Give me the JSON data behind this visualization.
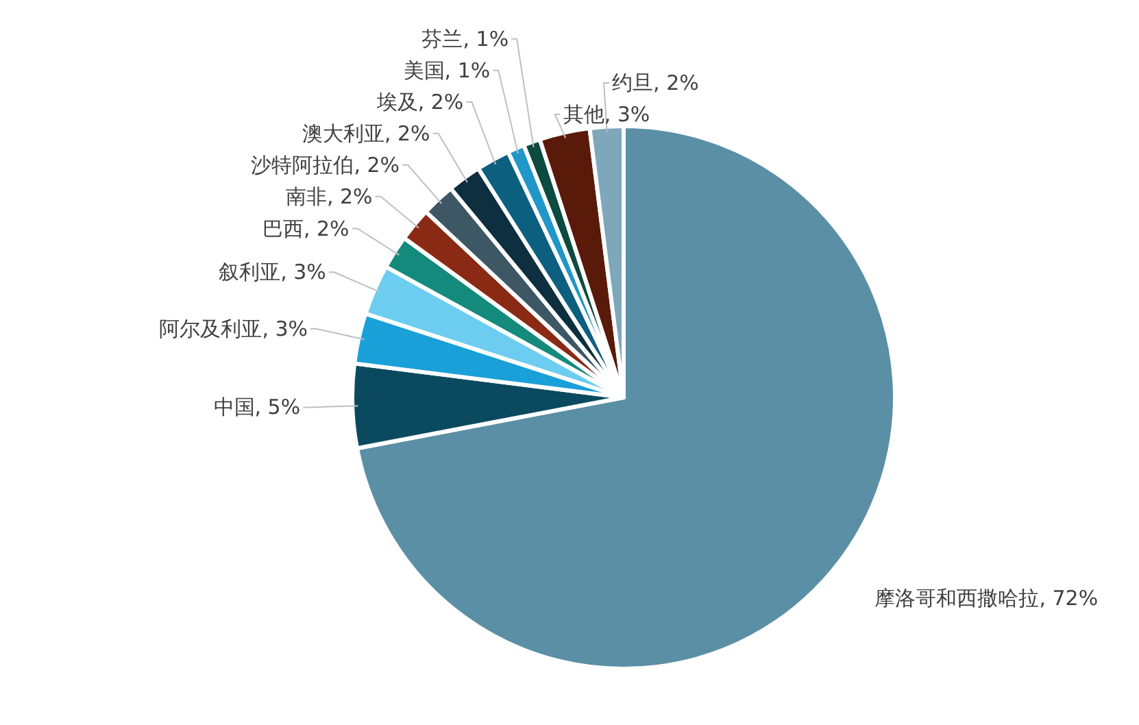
{
  "chart_data": {
    "type": "pie",
    "categories": [
      "摩洛哥和西撒哈拉",
      "中国",
      "阿尔及利亚",
      "叙利亚",
      "巴西",
      "南非",
      "沙特阿拉伯",
      "澳大利亚",
      "埃及",
      "美国",
      "芬兰",
      "其他",
      "约旦"
    ],
    "values": [
      72,
      5,
      3,
      3,
      2,
      2,
      2,
      2,
      2,
      1,
      1,
      3,
      2
    ],
    "value_labels": [
      "72%",
      "5%",
      "3%",
      "3%",
      "2%",
      "2%",
      "2%",
      "2%",
      "2%",
      "1%",
      "1%",
      "3%",
      "2%"
    ],
    "colors": [
      "#5b8fa6",
      "#0b4a5e",
      "#1aa0d8",
      "#6dcdf0",
      "#138a7c",
      "#8a2a14",
      "#3d5765",
      "#0d2f3f",
      "#0d5f80",
      "#2196c8",
      "#0d4a40",
      "#5a1a0a",
      "#7fa7bb"
    ]
  }
}
